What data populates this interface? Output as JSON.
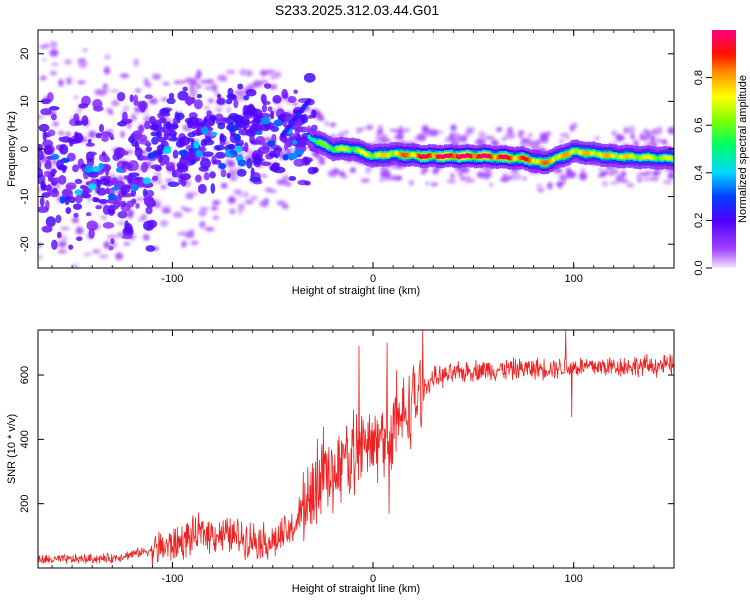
{
  "title": "S233.2025.312.03.44.G01",
  "chart_data": [
    {
      "type": "heatmap",
      "name": "spectrogram",
      "xlabel": "Height of straight line (km)",
      "ylabel": "Frequency (Hz)",
      "xlim": [
        -167,
        150
      ],
      "ylim": [
        -25,
        25
      ],
      "xticks": [
        -100,
        0,
        100
      ],
      "yticks": [
        -20,
        -10,
        0,
        10,
        20
      ],
      "colorbar": {
        "label": "Normalized spectral amplitude",
        "range": [
          0,
          1
        ],
        "ticks": [
          "0.0",
          "0.2",
          "0.4",
          "0.6",
          "0.8"
        ]
      },
      "ridge": [
        {
          "x": -40,
          "freq": 4,
          "amp": 0.35
        },
        {
          "x": -30,
          "freq": 2,
          "amp": 0.5
        },
        {
          "x": -20,
          "freq": 0,
          "amp": 0.6
        },
        {
          "x": -10,
          "freq": 0,
          "amp": 0.6
        },
        {
          "x": 0,
          "freq": -1.5,
          "amp": 0.65
        },
        {
          "x": 10,
          "freq": -1,
          "amp": 0.7
        },
        {
          "x": 25,
          "freq": -1.5,
          "amp": 0.85
        },
        {
          "x": 40,
          "freq": -1.5,
          "amp": 0.95
        },
        {
          "x": 55,
          "freq": -1.5,
          "amp": 0.9
        },
        {
          "x": 75,
          "freq": -2,
          "amp": 0.8
        },
        {
          "x": 85,
          "freq": -3,
          "amp": 0.75
        },
        {
          "x": 100,
          "freq": -0.5,
          "amp": 0.7
        },
        {
          "x": 120,
          "freq": -1.5,
          "amp": 0.7
        },
        {
          "x": 150,
          "freq": -2,
          "amp": 0.6
        }
      ]
    },
    {
      "type": "line",
      "name": "snr",
      "xlabel": "Height of straight line (km)",
      "ylabel": "SNR (10 * v/v)",
      "xlim": [
        -167,
        150
      ],
      "ylim": [
        0,
        740
      ],
      "xticks": [
        -100,
        0,
        100
      ],
      "yticks": [
        200,
        400,
        600
      ],
      "color": "#ee2222",
      "trend": [
        {
          "x": -167,
          "y": 25
        },
        {
          "x": -130,
          "y": 30
        },
        {
          "x": -100,
          "y": 70
        },
        {
          "x": -85,
          "y": 110
        },
        {
          "x": -70,
          "y": 100
        },
        {
          "x": -50,
          "y": 80
        },
        {
          "x": -40,
          "y": 120
        },
        {
          "x": -30,
          "y": 250
        },
        {
          "x": -20,
          "y": 300
        },
        {
          "x": -10,
          "y": 360
        },
        {
          "x": 0,
          "y": 380
        },
        {
          "x": 10,
          "y": 420
        },
        {
          "x": 20,
          "y": 520
        },
        {
          "x": 30,
          "y": 590
        },
        {
          "x": 50,
          "y": 615
        },
        {
          "x": 80,
          "y": 620
        },
        {
          "x": 100,
          "y": 625
        },
        {
          "x": 150,
          "y": 630
        }
      ],
      "spikes": [
        {
          "x": -7,
          "y": 690
        },
        {
          "x": 7,
          "y": 700
        },
        {
          "x": 96,
          "y": 740
        },
        {
          "x": 99,
          "y": 470
        },
        {
          "x": 8,
          "y": 170
        }
      ]
    }
  ]
}
